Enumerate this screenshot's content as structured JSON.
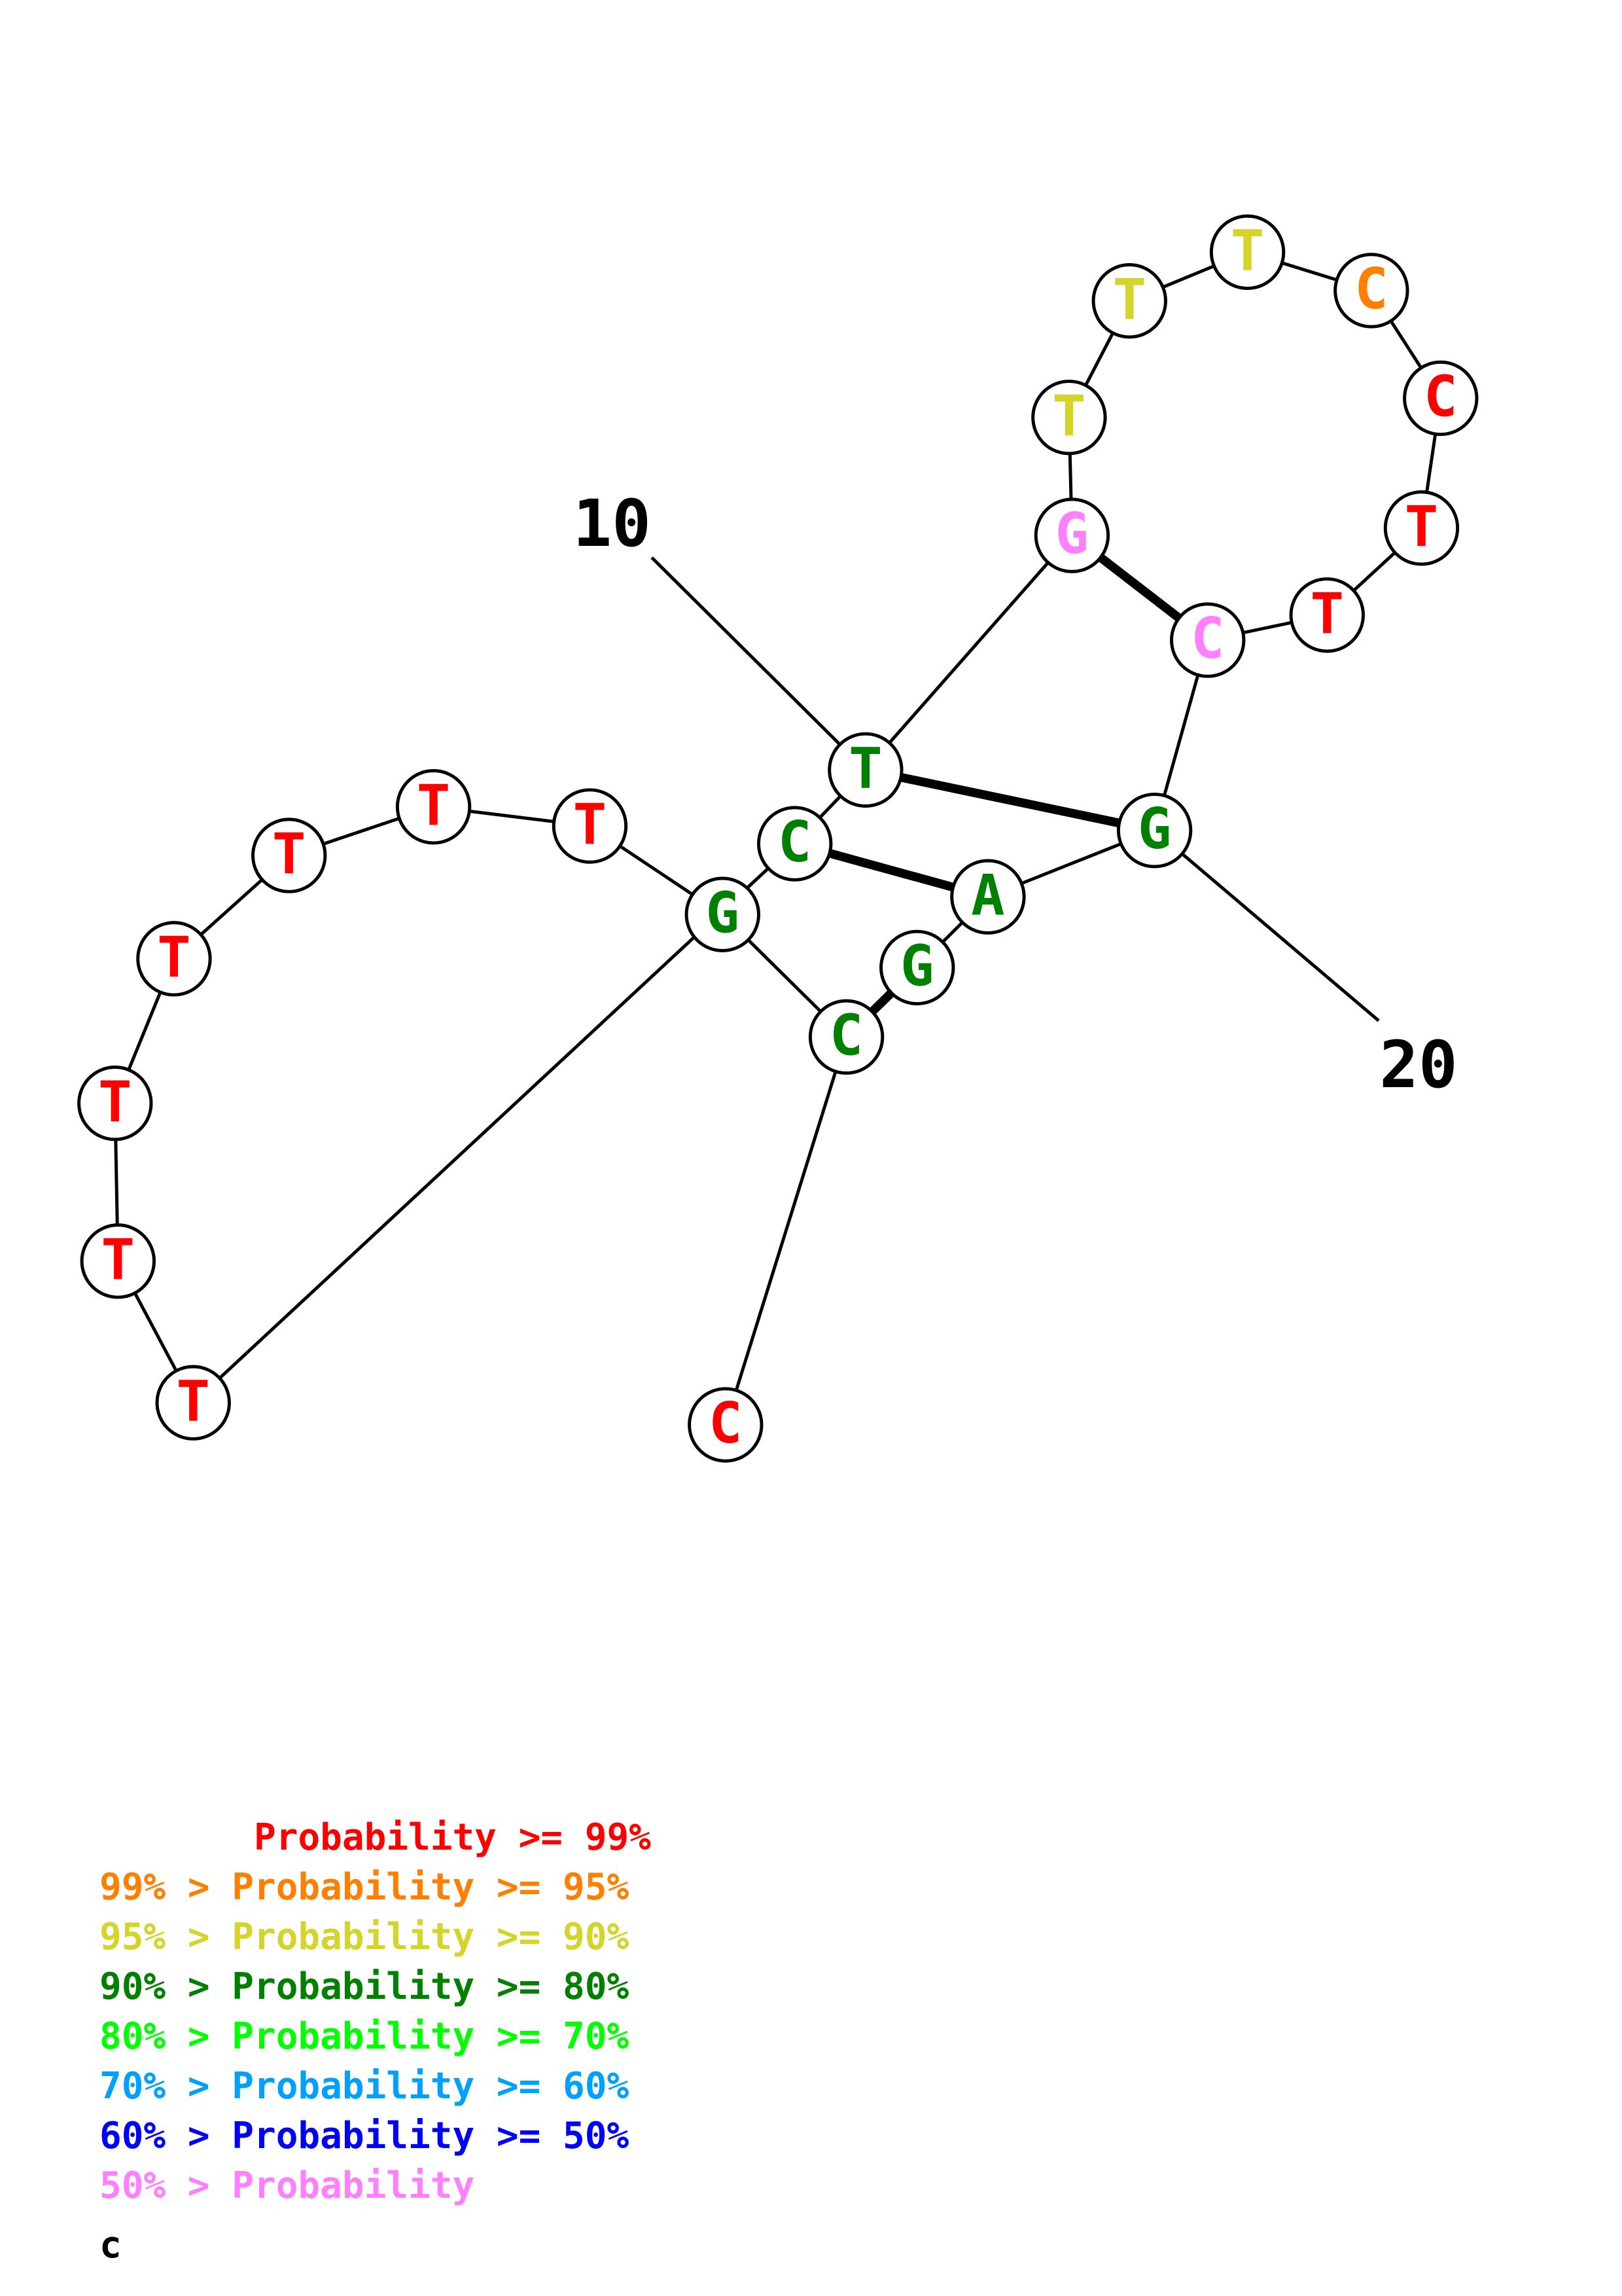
{
  "colors": {
    "p99": "#ff0000",
    "p95": "#ff8000",
    "p90": "#d4d42a",
    "p80": "#008000",
    "p70": "#00ff00",
    "p60": "#00a0ff",
    "p50": "#0000ff",
    "plt50": "#ff80ff"
  },
  "nucleotides": [
    {
      "base": "C",
      "color": "p99"
    },
    {
      "base": "C",
      "color": "p80"
    },
    {
      "base": "G",
      "color": "p80"
    },
    {
      "base": "T",
      "color": "p99"
    },
    {
      "base": "T",
      "color": "p99"
    },
    {
      "base": "T",
      "color": "p99"
    },
    {
      "base": "T",
      "color": "p99"
    },
    {
      "base": "T",
      "color": "p99"
    },
    {
      "base": "T",
      "color": "p99"
    },
    {
      "base": "T",
      "color": "p99"
    },
    {
      "base": "C",
      "color": "p80"
    },
    {
      "base": "T",
      "color": "p80"
    },
    {
      "base": "G",
      "color": "plt50"
    },
    {
      "base": "T",
      "color": "p90"
    },
    {
      "base": "T",
      "color": "p90"
    },
    {
      "base": "T",
      "color": "p90"
    },
    {
      "base": "C",
      "color": "p95"
    },
    {
      "base": "C",
      "color": "p99"
    },
    {
      "base": "T",
      "color": "p99"
    },
    {
      "base": "T",
      "color": "p99"
    },
    {
      "base": "C",
      "color": "plt50"
    },
    {
      "base": "G",
      "color": "p80"
    },
    {
      "base": "A",
      "color": "p80"
    },
    {
      "base": "G",
      "color": "p80"
    }
  ],
  "pairs": [
    [
      2,
      24
    ],
    [
      11,
      23
    ],
    [
      12,
      22
    ],
    [
      13,
      21
    ]
  ],
  "ticks": [
    {
      "label": "10",
      "nt": 12
    },
    {
      "label": "20",
      "nt": 22
    }
  ],
  "legend": [
    {
      "text": "       Probability >= 99%",
      "color": "p99"
    },
    {
      "text": "99% > Probability >= 95%",
      "color": "p95"
    },
    {
      "text": "95% > Probability >= 90%",
      "color": "p90"
    },
    {
      "text": "90% > Probability >= 80%",
      "color": "p80"
    },
    {
      "text": "80% > Probability >= 70%",
      "color": "p70"
    },
    {
      "text": "70% > Probability >= 60%",
      "color": "p60"
    },
    {
      "text": "60% > Probability >= 50%",
      "color": "p50"
    },
    {
      "text": "50% > Probability",
      "color": "plt50"
    }
  ],
  "sequence_label": "c"
}
